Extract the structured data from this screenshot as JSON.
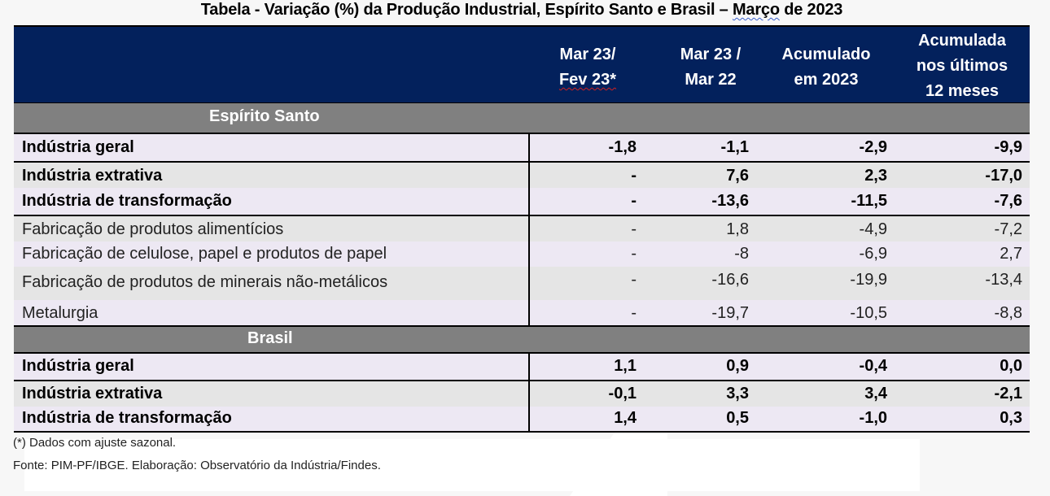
{
  "title": {
    "prefix": "Tabela - Variação (%) da Produção Industrial, Espírito Santo e Brasil – ",
    "month": "Março",
    "suffix": " de 2023"
  },
  "header": {
    "columns": [
      {
        "line1": "Mar 23/",
        "line2": "Fev 23*"
      },
      {
        "line1": "Mar 23 /",
        "line2": "Mar 22"
      },
      {
        "line1": "Acumulado",
        "line2": "em 2023"
      },
      {
        "line1": "Acumulada",
        "line2": "nos últimos",
        "line3": "12 meses"
      }
    ]
  },
  "sections": [
    {
      "name": "Espírito Santo",
      "rows": [
        {
          "label": "Indústria geral",
          "values": [
            "-1,8",
            "-1,1",
            "-2,9",
            "-9,9"
          ]
        },
        {
          "label": "Indústria extrativa",
          "values": [
            "-",
            "7,6",
            "2,3",
            "-17,0"
          ]
        },
        {
          "label": "Indústria de transformação",
          "values": [
            "-",
            "-13,6",
            "-11,5",
            "-7,6"
          ]
        },
        {
          "label": "Fabricação de produtos alimentícios",
          "values": [
            "-",
            "1,8",
            "-4,9",
            "-7,2"
          ]
        },
        {
          "label": "Fabricação de celulose, papel e produtos de papel",
          "values": [
            "-",
            "-8",
            "-6,9",
            "2,7"
          ]
        },
        {
          "label": "Fabricação de produtos de minerais não-metálicos",
          "values": [
            "-",
            "-16,6",
            "-19,9",
            "-13,4"
          ]
        },
        {
          "label": "Metalurgia",
          "values": [
            "-",
            "-19,7",
            "-10,5",
            "-8,8"
          ]
        }
      ]
    },
    {
      "name": "Brasil",
      "rows": [
        {
          "label": "Indústria geral",
          "values": [
            "1,1",
            "0,9",
            "-0,4",
            "0,0"
          ]
        },
        {
          "label": "Indústria extrativa",
          "values": [
            "-0,1",
            "3,3",
            "3,4",
            "-2,1"
          ]
        },
        {
          "label": "Indústria de transformação",
          "values": [
            "1,4",
            "0,5",
            "-1,0",
            "0,3"
          ]
        }
      ]
    }
  ],
  "notes": {
    "footnote": "(*) Dados com ajuste sazonal.",
    "source": "Fonte: PIM-PF/IBGE. Elaboração: Observatório da Indústria/Findes."
  }
}
